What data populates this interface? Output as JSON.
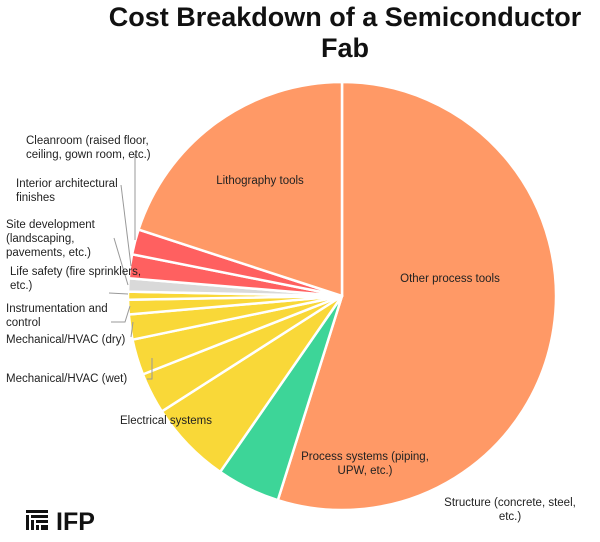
{
  "chart_data": {
    "type": "pie",
    "title": "Cost Breakdown of a Semiconductor Fab",
    "start": "top",
    "direction": "clockwise",
    "slices": [
      {
        "label": "Other process tools",
        "value": 54.9,
        "color": "#FF9966"
      },
      {
        "label": "Structure (concrete, steel, etc.)",
        "value": 4.8,
        "color": "#3DD598"
      },
      {
        "label": "Process systems (piping, UPW, etc.)",
        "value": 6.3,
        "color": "#F9D838"
      },
      {
        "label": "Electrical systems",
        "value": 3.1,
        "color": "#F9D838"
      },
      {
        "label": "Mechanical/HVAC (wet)",
        "value": 2.7,
        "color": "#F9D838"
      },
      {
        "label": "Mechanical/HVAC (dry)",
        "value": 1.9,
        "color": "#F9D838"
      },
      {
        "label": "Instrumentation and control",
        "value": 1.1,
        "color": "#F9D838"
      },
      {
        "label": "Life safety (fire sprinklers, etc.)",
        "value": 0.6,
        "color": "#F9D838"
      },
      {
        "label": "Site development (landscaping, pavements, etc.)",
        "value": 1.0,
        "color": "#D9D9D9"
      },
      {
        "label": "Interior architectural finishes",
        "value": 1.8,
        "color": "#FF6060"
      },
      {
        "label": "Cleanroom (raised floor, ceiling, gown room, etc.)",
        "value": 1.9,
        "color": "#FF6060"
      },
      {
        "label": "Lithography tools",
        "value": 20.0,
        "color": "#FF9966"
      }
    ]
  },
  "logo": {
    "text": "IFP"
  }
}
